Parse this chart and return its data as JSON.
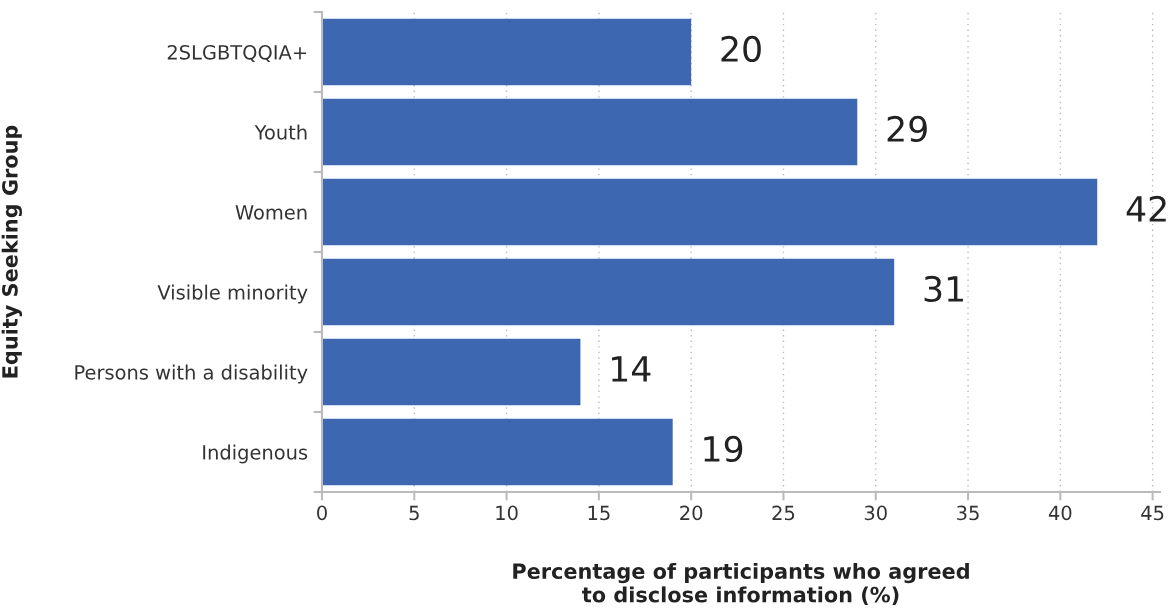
{
  "chart_data": {
    "type": "bar",
    "orientation": "horizontal",
    "categories": [
      "2SLGBTQQIA+",
      "Youth",
      "Women",
      "Visible minority",
      "Persons with a disability",
      "Indigenous"
    ],
    "values": [
      20,
      29,
      42,
      31,
      14,
      19
    ],
    "color": "#3d68b1",
    "xlabel": "Percentage of participants who agreed\nto disclose information (%)",
    "ylabel": "Equity Seeking Group",
    "xlim": [
      0,
      45.4
    ],
    "xticks": [
      0,
      5,
      10,
      15,
      20,
      25,
      30,
      35,
      40,
      45
    ],
    "grid": "x",
    "data_labels": true
  }
}
